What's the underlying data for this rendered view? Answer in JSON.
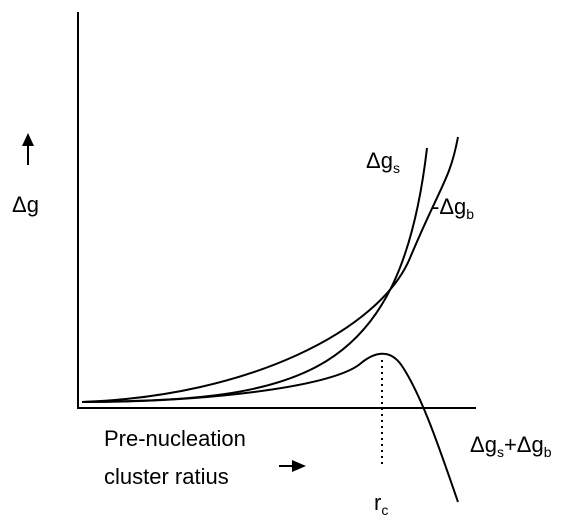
{
  "y_label": "Δg",
  "curves": [
    {
      "parts": [
        {
          "text": "Δg",
          "sub": "s"
        }
      ]
    },
    {
      "parts": [
        {
          "text": "-Δg",
          "sub": "b"
        }
      ]
    },
    {
      "parts": [
        {
          "text": "Δg",
          "sub": "s"
        },
        {
          "text": "+Δg",
          "sub": "b"
        }
      ]
    }
  ],
  "x_label": [
    "Pre-nucleation",
    "cluster ratius"
  ],
  "critical": {
    "text": "r",
    "sub": "c"
  }
}
